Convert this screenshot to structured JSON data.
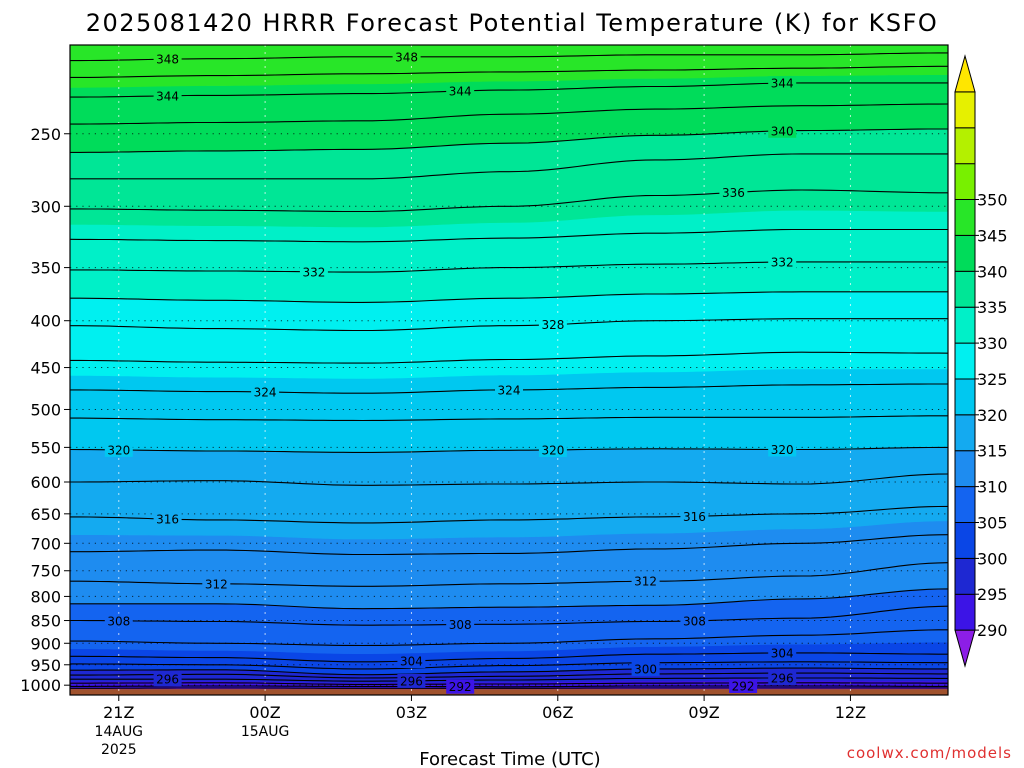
{
  "colors": {
    "ground": "#a0522d",
    "credit": "#e03030",
    "bands": [
      "#8c1ee6",
      "#3c14e6",
      "#1e28d2",
      "#0a46e6",
      "#1464f0",
      "#1e8cf0",
      "#14aaf0",
      "#00c8f0",
      "#00f0f0",
      "#00f0c8",
      "#00e696",
      "#00dc5a",
      "#28e628",
      "#78f000",
      "#b4f000",
      "#e6f000",
      "#ffe600"
    ]
  },
  "chart_data": {
    "type": "contour",
    "title": "2025081420 HRRR Forecast Potential Temperature (K) for KSFO",
    "xlabel": "Forecast Time (UTC)",
    "credit": "coolwx.com/models",
    "x_ticks": [
      {
        "hour": 0,
        "label": "21Z",
        "date": "14AUG",
        "year": "2025"
      },
      {
        "hour": 3,
        "label": "00Z",
        "date": "15AUG",
        "year": ""
      },
      {
        "hour": 6,
        "label": "03Z",
        "date": "",
        "year": ""
      },
      {
        "hour": 9,
        "label": "06Z",
        "date": "",
        "year": ""
      },
      {
        "hour": 12,
        "label": "09Z",
        "date": "",
        "year": ""
      },
      {
        "hour": 15,
        "label": "12Z",
        "date": "",
        "year": ""
      }
    ],
    "xlim_hours": [
      -1,
      17
    ],
    "y_axis": {
      "scale": "log-pressure",
      "range_hpa": [
        1025,
        200
      ],
      "orientation": "reversed"
    },
    "y_ticks": [
      250,
      300,
      350,
      400,
      450,
      500,
      550,
      600,
      650,
      700,
      750,
      800,
      850,
      900,
      950,
      1000
    ],
    "grid": "dotted horizontal lines at pressure ticks, vertical dotted lines at time ticks",
    "colorbar": {
      "ticks": [
        290,
        295,
        300,
        305,
        310,
        315,
        320,
        325,
        330,
        335,
        340,
        345,
        350
      ],
      "band_bounds": [
        285,
        290,
        295,
        300,
        305,
        310,
        315,
        320,
        325,
        330,
        335,
        340,
        345,
        350,
        355
      ],
      "extends": "both",
      "placement": "right"
    },
    "ground_pressure_hpa": 1010,
    "profile_hours": [
      -1,
      2,
      5,
      8,
      11,
      14,
      17
    ],
    "isotherm_profiles_hpa": [
      {
        "theta": 290,
        "p": [
          1008,
          1007,
          1008,
          1008,
          1007,
          1007,
          1007
        ]
      },
      {
        "theta": 292,
        "p": [
          1003,
          1002,
          1003,
          1004,
          1002,
          1002,
          1003
        ]
      },
      {
        "theta": 294,
        "p": [
          995,
          994,
          998,
          997,
          995,
          994,
          995
        ]
      },
      {
        "theta": 296,
        "p": [
          985,
          985,
          990,
          987,
          983,
          982,
          983
        ]
      },
      {
        "theta": 298,
        "p": [
          975,
          973,
          982,
          978,
          972,
          970,
          972
        ]
      },
      {
        "theta": 300,
        "p": [
          963,
          962,
          974,
          967,
          960,
          958,
          960
        ]
      },
      {
        "theta": 302,
        "p": [
          948,
          950,
          960,
          952,
          945,
          943,
          945
        ]
      },
      {
        "theta": 304,
        "p": [
          930,
          933,
          943,
          935,
          925,
          922,
          925
        ]
      },
      {
        "theta": 306,
        "p": [
          895,
          900,
          905,
          900,
          890,
          882,
          870
        ]
      },
      {
        "theta": 308,
        "p": [
          850,
          852,
          860,
          858,
          852,
          845,
          820
        ]
      },
      {
        "theta": 310,
        "p": [
          815,
          815,
          825,
          822,
          818,
          805,
          785
        ]
      },
      {
        "theta": 312,
        "p": [
          770,
          775,
          780,
          775,
          770,
          760,
          735
        ]
      },
      {
        "theta": 314,
        "p": [
          715,
          712,
          720,
          718,
          710,
          700,
          685
        ]
      },
      {
        "theta": 316,
        "p": [
          655,
          660,
          665,
          660,
          655,
          650,
          638
        ]
      },
      {
        "theta": 318,
        "p": [
          600,
          598,
          605,
          603,
          600,
          603,
          588
        ]
      },
      {
        "theta": 320,
        "p": [
          553,
          555,
          557,
          554,
          552,
          553,
          550
        ]
      },
      {
        "theta": 322,
        "p": [
          511,
          513,
          514,
          512,
          510,
          510,
          508
        ]
      },
      {
        "theta": 324,
        "p": [
          476,
          478,
          480,
          476,
          473,
          470,
          469
        ]
      },
      {
        "theta": 326,
        "p": [
          442,
          444,
          445,
          441,
          437,
          433,
          434
        ]
      },
      {
        "theta": 328,
        "p": [
          405,
          408,
          410,
          405,
          400,
          398,
          398
        ]
      },
      {
        "theta": 330,
        "p": [
          378,
          380,
          382,
          378,
          374,
          372,
          372
        ]
      },
      {
        "theta": 332,
        "p": [
          352,
          353,
          354,
          350,
          347,
          345,
          345
        ]
      },
      {
        "theta": 334,
        "p": [
          326,
          327,
          328,
          325,
          321,
          318,
          318
        ]
      },
      {
        "theta": 336,
        "p": [
          302,
          303,
          304,
          300,
          292,
          288,
          290
        ]
      },
      {
        "theta": 338,
        "p": [
          280,
          280,
          280,
          275,
          267,
          263,
          263
        ]
      },
      {
        "theta": 340,
        "p": [
          262,
          261,
          260,
          256,
          251,
          248,
          247
        ]
      },
      {
        "theta": 342,
        "p": [
          244,
          243,
          242,
          238,
          235,
          233,
          232
        ]
      },
      {
        "theta": 344,
        "p": [
          228,
          227,
          226,
          224,
          222,
          220,
          220
        ]
      },
      {
        "theta": 346,
        "p": [
          217,
          216,
          215,
          214,
          213,
          212,
          211
        ]
      },
      {
        "theta": 348,
        "p": [
          208,
          207,
          206,
          206,
          205,
          205,
          204
        ]
      }
    ],
    "contour_labels": [
      {
        "text": "348",
        "hour": 1.0,
        "theta": 348
      },
      {
        "text": "348",
        "hour": 5.9,
        "theta": 348
      },
      {
        "text": "344",
        "hour": 1.0,
        "theta": 344
      },
      {
        "text": "344",
        "hour": 7.0,
        "theta": 344
      },
      {
        "text": "344",
        "hour": 13.6,
        "theta": 344
      },
      {
        "text": "340",
        "hour": 13.6,
        "theta": 340
      },
      {
        "text": "336",
        "hour": 12.6,
        "theta": 336
      },
      {
        "text": "332",
        "hour": 4.0,
        "theta": 332
      },
      {
        "text": "332",
        "hour": 13.6,
        "theta": 332
      },
      {
        "text": "328",
        "hour": 8.9,
        "theta": 328
      },
      {
        "text": "324",
        "hour": 3.0,
        "theta": 324
      },
      {
        "text": "324",
        "hour": 8.0,
        "theta": 324
      },
      {
        "text": "320",
        "hour": 0.0,
        "theta": 320
      },
      {
        "text": "320",
        "hour": 8.9,
        "theta": 320
      },
      {
        "text": "320",
        "hour": 13.6,
        "theta": 320
      },
      {
        "text": "316",
        "hour": 1.0,
        "theta": 316
      },
      {
        "text": "316",
        "hour": 11.8,
        "theta": 316
      },
      {
        "text": "312",
        "hour": 2.0,
        "theta": 312
      },
      {
        "text": "312",
        "hour": 10.8,
        "theta": 312
      },
      {
        "text": "308",
        "hour": 0.0,
        "theta": 308
      },
      {
        "text": "308",
        "hour": 7.0,
        "theta": 308
      },
      {
        "text": "308",
        "hour": 11.8,
        "theta": 308
      },
      {
        "text": "304",
        "hour": 6.0,
        "theta": 304
      },
      {
        "text": "304",
        "hour": 13.6,
        "theta": 304
      },
      {
        "text": "300",
        "hour": 10.8,
        "theta": 300
      },
      {
        "text": "296",
        "hour": 1.0,
        "theta": 296
      },
      {
        "text": "296",
        "hour": 6.0,
        "theta": 296
      },
      {
        "text": "296",
        "hour": 13.6,
        "theta": 296
      },
      {
        "text": "292",
        "hour": 7.0,
        "theta": 292
      },
      {
        "text": "292",
        "hour": 12.8,
        "theta": 292
      }
    ]
  }
}
